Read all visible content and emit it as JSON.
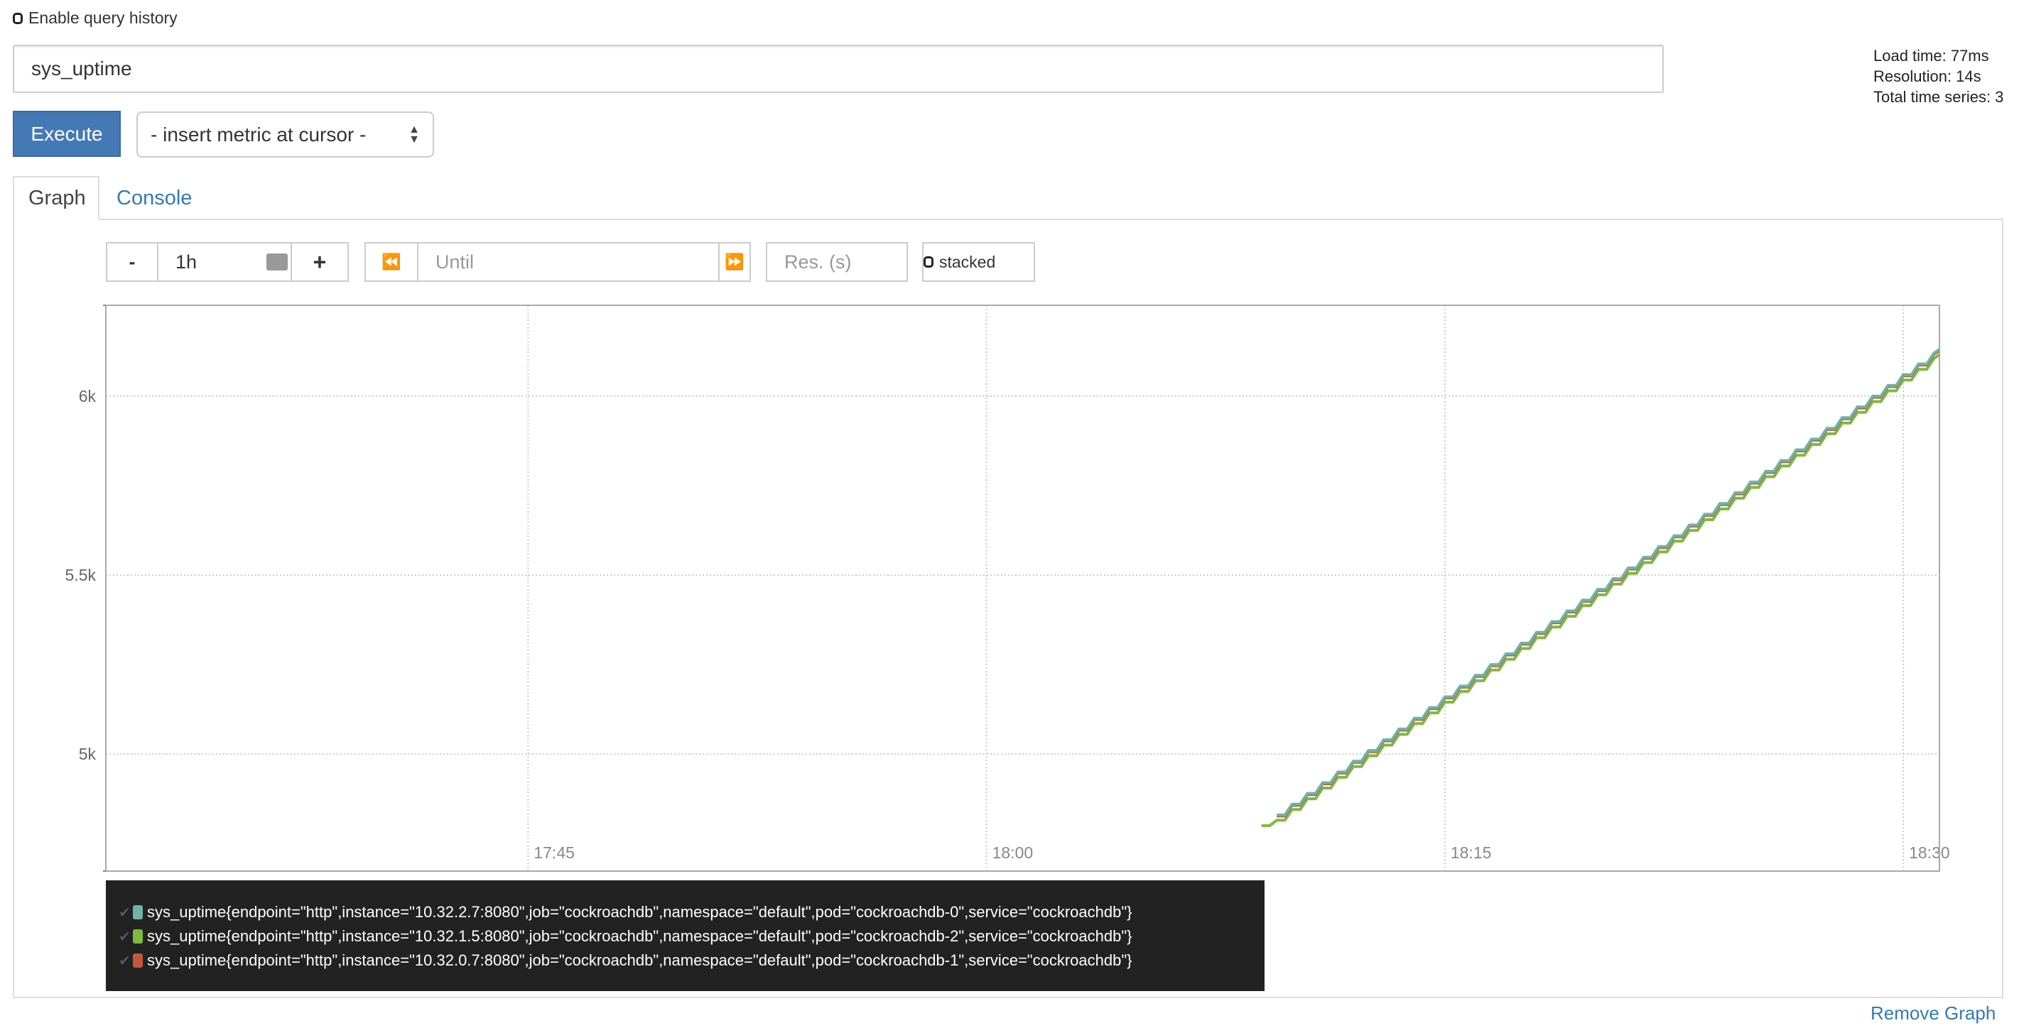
{
  "history": {
    "label": "Enable query history",
    "checked": false
  },
  "query": {
    "value": "sys_uptime"
  },
  "stats": {
    "load_time": "Load time: 77ms",
    "resolution": "Resolution: 14s",
    "total_series": "Total time series: 3"
  },
  "execute_label": "Execute",
  "metric_select": {
    "selected": "- insert metric at cursor -"
  },
  "tabs": [
    {
      "label": "Graph",
      "active": true
    },
    {
      "label": "Console",
      "active": false
    }
  ],
  "controls": {
    "minus": "-",
    "range": "1h",
    "plus": "+",
    "back": "⏪",
    "until_placeholder": "Until",
    "forward": "⏩",
    "res_placeholder": "Res. (s)",
    "stacked": "stacked"
  },
  "chart_data": {
    "type": "line",
    "interpolation": "step",
    "grid": true,
    "xlim": [
      "17:31:11",
      "18:31:11"
    ],
    "ylim": [
      4673,
      6254
    ],
    "x_ticks": [
      "17:45",
      "18:00",
      "18:15",
      "18:30"
    ],
    "y_ticks": [
      {
        "value": 5000,
        "label": "5k"
      },
      {
        "value": 5500,
        "label": "5.5k"
      },
      {
        "value": 6000,
        "label": "6k"
      }
    ],
    "x": [
      "18:09:00",
      "18:09:30",
      "18:10:00",
      "18:10:30",
      "18:11:00",
      "18:11:30",
      "18:12:00",
      "18:12:30",
      "18:13:00",
      "18:13:30",
      "18:14:00",
      "18:14:30",
      "18:15:00",
      "18:15:30",
      "18:16:00",
      "18:16:30",
      "18:17:00",
      "18:17:30",
      "18:18:00",
      "18:18:30",
      "18:19:00",
      "18:19:30",
      "18:20:00",
      "18:20:30",
      "18:21:00",
      "18:21:30",
      "18:22:00",
      "18:22:30",
      "18:23:00",
      "18:23:30",
      "18:24:00",
      "18:24:30",
      "18:25:00",
      "18:25:30",
      "18:26:00",
      "18:26:30",
      "18:27:00",
      "18:27:30",
      "18:28:00",
      "18:28:30",
      "18:29:00",
      "18:29:30",
      "18:30:00",
      "18:30:30",
      "18:31:00"
    ],
    "series": [
      {
        "name": "sys_uptime{endpoint=\"http\",instance=\"10.32.2.7:8080\",job=\"cockroachdb\",namespace=\"default\",pod=\"cockroachdb-0\",service=\"cockroachdb\"}",
        "color": "#6fb3a6",
        "values": [
          null,
          4830,
          4860,
          4890,
          4920,
          4950,
          4980,
          5010,
          5040,
          5070,
          5100,
          5130,
          5160,
          5190,
          5220,
          5250,
          5280,
          5310,
          5340,
          5370,
          5400,
          5430,
          5460,
          5490,
          5520,
          5550,
          5580,
          5610,
          5640,
          5670,
          5700,
          5730,
          5760,
          5790,
          5820,
          5850,
          5880,
          5910,
          5940,
          5970,
          6000,
          6030,
          6060,
          6090,
          6120
        ]
      },
      {
        "name": "sys_uptime{endpoint=\"http\",instance=\"10.32.1.5:8080\",job=\"cockroachdb\",namespace=\"default\",pod=\"cockroachdb-2\",service=\"cockroachdb\"}",
        "color": "#7eb940",
        "values": [
          4800,
          4815,
          4845,
          4875,
          4905,
          4935,
          4965,
          4995,
          5025,
          5055,
          5085,
          5115,
          5145,
          5175,
          5205,
          5235,
          5265,
          5295,
          5325,
          5355,
          5385,
          5415,
          5445,
          5475,
          5505,
          5535,
          5565,
          5595,
          5625,
          5655,
          5685,
          5715,
          5745,
          5775,
          5805,
          5835,
          5865,
          5895,
          5925,
          5955,
          5985,
          6015,
          6045,
          6075,
          6105
        ]
      },
      {
        "name": "sys_uptime{endpoint=\"http\",instance=\"10.32.0.7:8080\",job=\"cockroachdb\",namespace=\"default\",pod=\"cockroachdb-1\",service=\"cockroachdb\"}",
        "color": "#c4573b",
        "values": [
          null,
          4827,
          4857,
          4887,
          4917,
          4947,
          4977,
          5007,
          5037,
          5067,
          5097,
          5127,
          5157,
          5187,
          5217,
          5247,
          5277,
          5307,
          5337,
          5367,
          5397,
          5427,
          5457,
          5487,
          5517,
          5547,
          5577,
          5607,
          5637,
          5667,
          5697,
          5727,
          5757,
          5787,
          5817,
          5847,
          5877,
          5907,
          5937,
          5967,
          5997,
          6027,
          6057,
          6087,
          6117
        ]
      }
    ]
  },
  "remove_graph": "Remove Graph"
}
